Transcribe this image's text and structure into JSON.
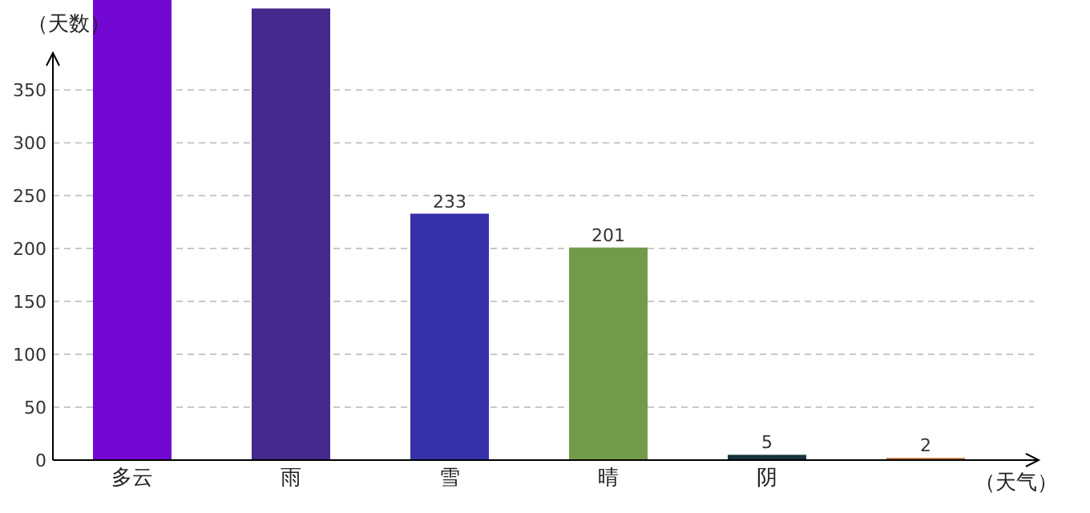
{
  "chart_data": {
    "type": "bar",
    "ylabel": "（天数）",
    "xlabel": "（天气）",
    "categories": [
      "多云",
      "雨",
      "雪",
      "晴",
      "阴",
      null
    ],
    "values": [
      435,
      427,
      233,
      201,
      5,
      2
    ],
    "value_labels": [
      null,
      null,
      "233",
      "201",
      "5",
      "2"
    ],
    "colors": [
      "#7208d2",
      "#45288c",
      "#3631a8",
      "#739a48",
      "#15343a",
      "#b5652a"
    ],
    "ylim": [
      0,
      435
    ],
    "yticks": [
      0,
      50,
      100,
      150,
      200,
      250,
      300,
      350
    ],
    "grid": "y"
  }
}
